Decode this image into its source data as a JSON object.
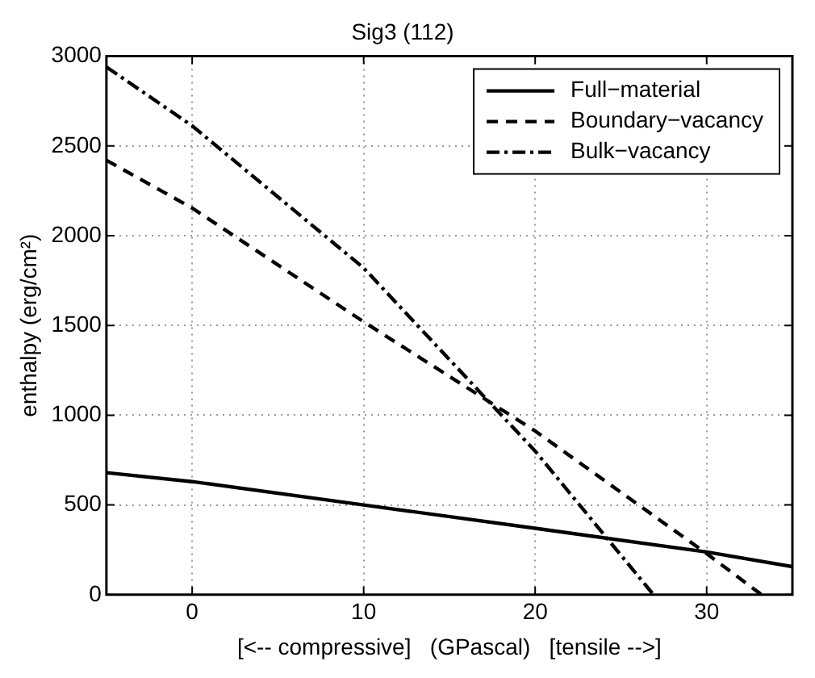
{
  "chart_data": {
    "type": "line",
    "title": "Sig3 (112)",
    "xlabel": "[<-- compressive]   (GPascal)   [tensile -->]",
    "ylabel": "enthalpy (erg/cm²)",
    "xlim": [
      -5,
      35
    ],
    "xticks": [
      0,
      10,
      20,
      30
    ],
    "ylim": [
      0,
      3000
    ],
    "yticks": [
      0,
      500,
      1000,
      1500,
      2000,
      2500,
      3000
    ],
    "grid": true,
    "legend": "top right",
    "marker": "none",
    "series": [
      {
        "name": "Full−material",
        "color": "#000000",
        "line_style": "solid",
        "x": [
          -5,
          0,
          10,
          20,
          30,
          35
        ],
        "values": [
          680,
          630,
          500,
          370,
          238,
          156
        ]
      },
      {
        "name": "Boundary−vacancy",
        "color": "#000000",
        "line_style": "dashed",
        "x": [
          -5,
          0,
          10,
          20,
          30,
          33.2
        ],
        "values": [
          2420,
          2154,
          1520,
          912,
          229,
          0
        ]
      },
      {
        "name": "Bulk−vacancy",
        "color": "#000000",
        "line_style": "dashdot",
        "x": [
          -5,
          0,
          10,
          20,
          26.9
        ],
        "values": [
          2940,
          2612,
          1820,
          800,
          0
        ]
      }
    ]
  }
}
